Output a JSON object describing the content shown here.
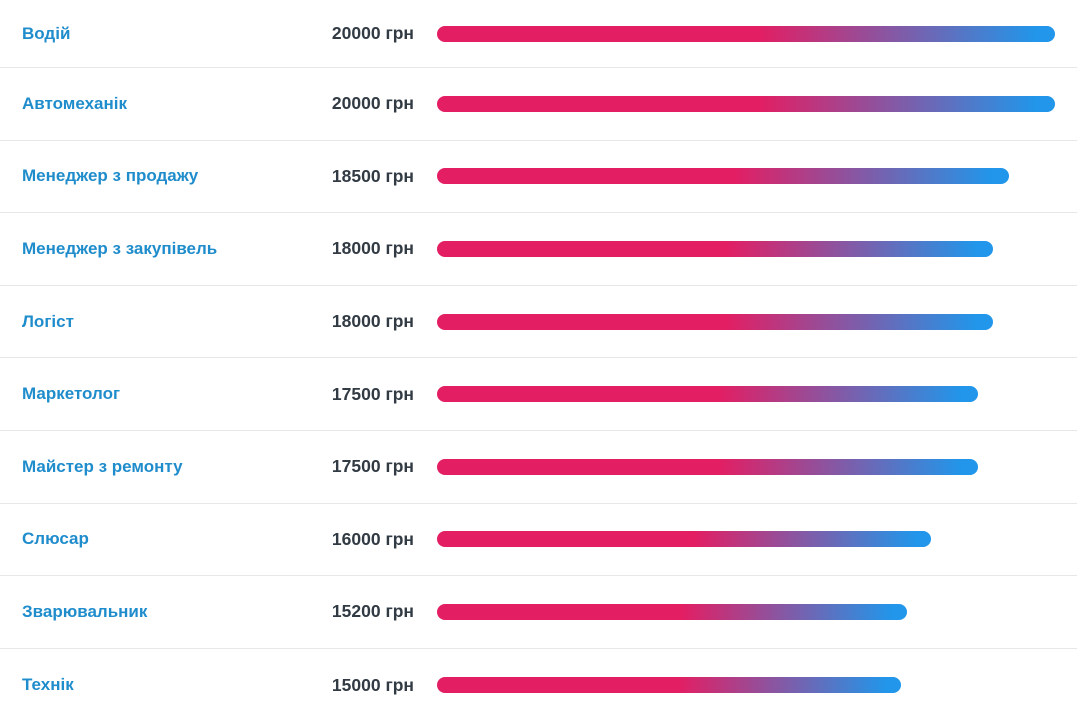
{
  "chart_data": {
    "type": "bar",
    "orientation": "horizontal",
    "unit": "грн",
    "xlim": [
      0,
      20000
    ],
    "categories": [
      "Водій",
      "Автомеханік",
      "Менеджер з продажу",
      "Менеджер з закупівель",
      "Логіст",
      "Маркетолог",
      "Майстер з ремонту",
      "Слюсар",
      "Зварювальник",
      "Технік"
    ],
    "values": [
      20000,
      20000,
      18500,
      18000,
      18000,
      17500,
      17500,
      16000,
      15200,
      15000
    ],
    "value_labels": [
      "20000 грн",
      "20000 грн",
      "18500 грн",
      "18000 грн",
      "18000 грн",
      "17500 грн",
      "17500 грн",
      "16000 грн",
      "15200 грн",
      "15000 грн"
    ],
    "legend": null,
    "grid": false
  },
  "colors": {
    "bar_gradient_start": "#e31e63",
    "bar_gradient_end": "#2196ea",
    "job_title": "#1f8ccc",
    "salary_text": "#323b44",
    "divider": "#e7e7e7",
    "background": "#ffffff"
  }
}
